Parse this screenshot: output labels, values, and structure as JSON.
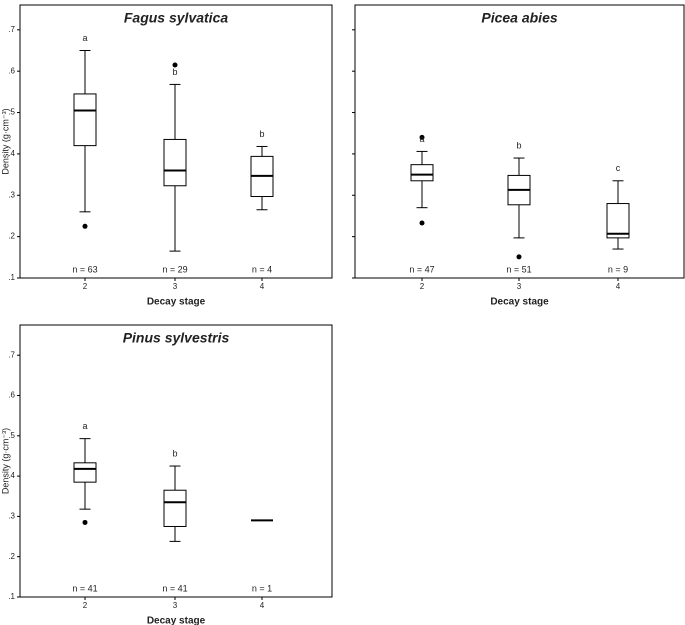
{
  "chart_data": [
    {
      "type": "box",
      "title": "Fagus sylvatica",
      "xlabel": "Decay stage",
      "ylabel": "Density (g·cm⁻³)",
      "categories": [
        "2",
        "3",
        "4"
      ],
      "ylim": [
        0.1,
        0.76
      ],
      "yticks": [
        {
          "value": 0.1,
          "label": ".1"
        },
        {
          "value": 0.2,
          "label": ".2"
        },
        {
          "value": 0.3,
          "label": ".3"
        },
        {
          "value": 0.4,
          "label": ".4"
        },
        {
          "value": 0.5,
          "label": ".5"
        },
        {
          "value": 0.6,
          "label": ".6"
        },
        {
          "value": 0.7,
          "label": ".7"
        }
      ],
      "boxes": [
        {
          "whislo": 0.26,
          "q1": 0.42,
          "med": 0.505,
          "q3": 0.545,
          "whishi": 0.65,
          "fliers": [
            0.225
          ]
        },
        {
          "whislo": 0.165,
          "q1": 0.323,
          "med": 0.36,
          "q3": 0.435,
          "whishi": 0.568,
          "fliers": [
            0.615
          ]
        },
        {
          "whislo": 0.265,
          "q1": 0.297,
          "med": 0.347,
          "q3": 0.394,
          "whishi": 0.418,
          "fliers": []
        }
      ],
      "letters": [
        "a",
        "b",
        "b"
      ],
      "n_labels": [
        "n = 63",
        "n = 29",
        "n = 4"
      ]
    },
    {
      "type": "box",
      "title": "Picea abies",
      "xlabel": "Decay stage",
      "categories": [
        "2",
        "3",
        "4"
      ],
      "ylim": [
        0.1,
        0.76
      ],
      "yticks": [
        0.1,
        0.2,
        0.3,
        0.4,
        0.5,
        0.6,
        0.7
      ],
      "boxes": [
        {
          "whislo": 0.27,
          "q1": 0.335,
          "med": 0.35,
          "q3": 0.374,
          "whishi": 0.406,
          "fliers": [
            0.44,
            0.233
          ]
        },
        {
          "whislo": 0.197,
          "q1": 0.277,
          "med": 0.313,
          "q3": 0.348,
          "whishi": 0.39,
          "fliers": [
            0.151
          ]
        },
        {
          "whislo": 0.17,
          "q1": 0.197,
          "med": 0.207,
          "q3": 0.28,
          "whishi": 0.335,
          "fliers": []
        }
      ],
      "letters": [
        "a",
        "b",
        "c"
      ],
      "n_labels": [
        "n = 47",
        "n = 51",
        "n = 9"
      ]
    },
    {
      "type": "box",
      "title": "Pinus sylvestris",
      "xlabel": "Decay stage",
      "ylabel": "Density (g·cm⁻³)",
      "categories": [
        "2",
        "3",
        "4"
      ],
      "ylim": [
        0.1,
        0.775
      ],
      "yticks": [
        {
          "value": 0.1,
          "label": ".1"
        },
        {
          "value": 0.2,
          "label": ".2"
        },
        {
          "value": 0.3,
          "label": ".3"
        },
        {
          "value": 0.4,
          "label": ".4"
        },
        {
          "value": 0.5,
          "label": ".5"
        },
        {
          "value": 0.6,
          "label": ".6"
        },
        {
          "value": 0.7,
          "label": ".7"
        }
      ],
      "boxes": [
        {
          "whislo": 0.318,
          "q1": 0.385,
          "med": 0.418,
          "q3": 0.433,
          "whishi": 0.493,
          "fliers": [
            0.285
          ]
        },
        {
          "whislo": 0.238,
          "q1": 0.275,
          "med": 0.335,
          "q3": 0.365,
          "whishi": 0.425,
          "fliers": []
        },
        {
          "whislo": 0.29,
          "q1": 0.29,
          "med": 0.29,
          "q3": 0.29,
          "whishi": 0.29,
          "fliers": []
        }
      ],
      "letters": [
        "a",
        "b",
        null
      ],
      "n_labels": [
        "n = 41",
        "n = 41",
        "n = 1"
      ]
    }
  ]
}
